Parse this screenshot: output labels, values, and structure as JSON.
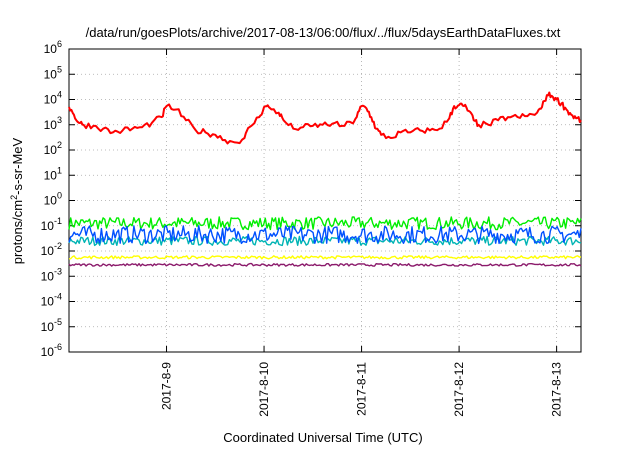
{
  "chart_data": {
    "type": "line",
    "title": "/data/run/goesPlots/archive/2017-08-13/06:00/flux/../flux/5daysEarthDataFluxes.txt",
    "xlabel": "Coordinated Universal Time (UTC)",
    "ylabel_prefix": "protons/cm",
    "ylabel_sup": "2",
    "ylabel_suffix": "-s-sr-MeV",
    "yscale": "log",
    "grid": true,
    "xlim": [
      "2017-08-08T00:00",
      "2017-08-13T06:00"
    ],
    "ylim_exp": [
      -6,
      6
    ],
    "y_ticks": [
      {
        "exp": -6,
        "base": "10",
        "sup": "-6"
      },
      {
        "exp": -5,
        "base": "10",
        "sup": "-5"
      },
      {
        "exp": -4,
        "base": "10",
        "sup": "-4"
      },
      {
        "exp": -3,
        "base": "10",
        "sup": "-3"
      },
      {
        "exp": -2,
        "base": "10",
        "sup": "-2"
      },
      {
        "exp": -1,
        "base": "10",
        "sup": "-1"
      },
      {
        "exp": 0,
        "base": "10",
        "sup": "0"
      },
      {
        "exp": 1,
        "base": "10",
        "sup": "1"
      },
      {
        "exp": 2,
        "base": "10",
        "sup": "2"
      },
      {
        "exp": 3,
        "base": "10",
        "sup": "3"
      },
      {
        "exp": 4,
        "base": "10",
        "sup": "4"
      },
      {
        "exp": 5,
        "base": "10",
        "sup": "5"
      },
      {
        "exp": 6,
        "base": "10",
        "sup": "6"
      }
    ],
    "x_ticks": [
      {
        "label": "2017-8-9",
        "day": 9
      },
      {
        "label": "2017-8-10",
        "day": 10
      },
      {
        "label": "2017-8-11",
        "day": 11
      },
      {
        "label": "2017-8-12",
        "day": 12
      },
      {
        "label": "2017-8-13",
        "day": 13
      }
    ],
    "series": [
      {
        "color": "#00ee00",
        "base_exp": -0.9,
        "noise": 0.25
      },
      {
        "color": "#00b4b4",
        "base_exp": -1.6,
        "noise": 0.18
      },
      {
        "color": "#0050ff",
        "base_exp": -1.35,
        "noise": 0.35
      },
      {
        "color": "#ffff00",
        "base_exp": -2.25,
        "noise": 0.06
      },
      {
        "color": "#8b1a6b",
        "base_exp": -2.55,
        "noise": 0.05
      },
      {
        "color": "#ff0000",
        "x_day": [
          8.0,
          8.05,
          8.1,
          8.15,
          8.25,
          8.35,
          8.45,
          8.55,
          8.65,
          8.75,
          8.85,
          8.95,
          9.0,
          9.1,
          9.2,
          9.3,
          9.4,
          9.5,
          9.6,
          9.7,
          9.8,
          9.85,
          9.95,
          10.0,
          10.05,
          10.15,
          10.2,
          10.3,
          10.4,
          10.5,
          10.6,
          10.7,
          10.8,
          10.9,
          10.95,
          11.0,
          11.05,
          11.1,
          11.15,
          11.2,
          11.3,
          11.4,
          11.5,
          11.6,
          11.7,
          11.8,
          11.9,
          11.95,
          12.0,
          12.05,
          12.1,
          12.15,
          12.2,
          12.3,
          12.4,
          12.5,
          12.6,
          12.7,
          12.8,
          12.85,
          12.9,
          12.95,
          13.0,
          13.05,
          13.1,
          13.15,
          13.2,
          13.25
        ],
        "y": [
          5000,
          2500,
          1200,
          1000,
          900,
          700,
          500,
          600,
          700,
          800,
          1200,
          2000,
          5500,
          4000,
          1500,
          600,
          500,
          400,
          250,
          200,
          300,
          800,
          2000,
          5000,
          5000,
          3000,
          1500,
          700,
          800,
          900,
          1000,
          1100,
          900,
          1200,
          2000,
          5500,
          4500,
          2000,
          700,
          400,
          300,
          500,
          500,
          600,
          600,
          700,
          1800,
          5500,
          6000,
          5500,
          3500,
          1500,
          1000,
          1000,
          1500,
          2000,
          2000,
          2200,
          3000,
          5000,
          15000,
          14000,
          10000,
          7000,
          4000,
          2500,
          1800,
          1500
        ]
      }
    ],
    "legend": "none"
  }
}
